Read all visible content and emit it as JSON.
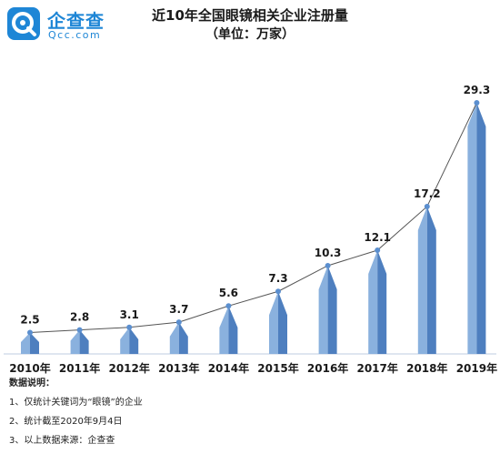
{
  "brand": {
    "name": "企查查",
    "domain": "Qcc.com",
    "logo_icon": "qcc-logo-icon"
  },
  "colors": {
    "brand": "#1e86d6",
    "bar_light": "#8ab1de",
    "bar_dark": "#4e7fbf",
    "line": "#555555",
    "point": "#5b8fcf"
  },
  "chart_data": {
    "type": "bar",
    "title": "近10年全国眼镜相关企业注册量",
    "subtitle": "（单位：万家）",
    "categories": [
      "2010年",
      "2011年",
      "2012年",
      "2013年",
      "2014年",
      "2015年",
      "2016年",
      "2017年",
      "2018年",
      "2019年"
    ],
    "values": [
      2.5,
      2.8,
      3.1,
      3.7,
      5.6,
      7.3,
      10.3,
      12.1,
      17.2,
      29.3
    ],
    "value_labels": [
      "2.5",
      "2.8",
      "3.1",
      "3.7",
      "5.6",
      "7.3",
      "10.3",
      "12.1",
      "17.2",
      "29.3"
    ],
    "overlay": "line connecting bar tops",
    "ylim": [
      0,
      30
    ],
    "grid": false,
    "legend": "none"
  },
  "notes": {
    "heading": "数据说明：",
    "items": [
      "1、仅统计关键词为“眼镜”的企业",
      "2、统计截至2020年9月4日",
      "3、以上数据来源：企查查"
    ]
  }
}
